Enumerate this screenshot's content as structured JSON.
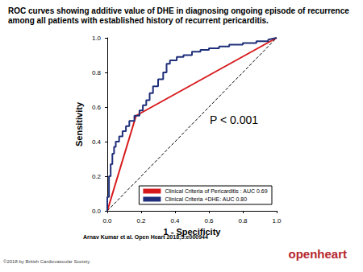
{
  "chart_data": {
    "type": "line",
    "title": "ROC curves showing additive value of DHE in diagnosing ongoing episode of recurrence among all patients with established history of recurrent pericarditis.",
    "x_label": "1 - Specificity",
    "y_label": "Sensitivity",
    "xlim": [
      0,
      1
    ],
    "ylim": [
      0,
      1
    ],
    "xticks": [
      {
        "value": 0,
        "label": "0.0"
      },
      0.2,
      0.4,
      0.6,
      0.8,
      {
        "value": 1,
        "label": "1.0"
      }
    ],
    "yticks": [
      {
        "value": 0,
        "label": "0.0"
      },
      0.2,
      0.4,
      0.6,
      0.8,
      {
        "value": 1,
        "label": "1.0"
      }
    ],
    "grid": false,
    "legend": "lower right",
    "annotations": [
      "P < 0.001"
    ],
    "series": [
      {
        "name": "Clinical Criteria of Pericarditis : AUC 0.69",
        "color": "#d7191c",
        "line_style": "solid",
        "x": [
          0,
          0.17,
          1
        ],
        "values": [
          0,
          0.55,
          1
        ]
      },
      {
        "name": "Clinical Criteria +DHE: AUC 0.80",
        "color": "#1f2f7a",
        "line_style": "solid",
        "x": [
          0,
          0,
          0.01,
          0.01,
          0.02,
          0.02,
          0.03,
          0.03,
          0.04,
          0.04,
          0.05,
          0.05,
          0.07,
          0.07,
          0.09,
          0.09,
          0.11,
          0.11,
          0.13,
          0.13,
          0.16,
          0.16,
          0.19,
          0.19,
          0.21,
          0.21,
          0.23,
          0.23,
          0.25,
          0.25,
          0.27,
          0.27,
          0.3,
          0.3,
          0.33,
          0.33,
          0.35,
          0.35,
          0.37,
          0.37,
          0.41,
          0.41,
          0.45,
          0.45,
          0.5,
          0.5,
          0.55,
          0.55,
          0.6,
          0.6,
          0.66,
          0.66,
          0.72,
          0.72,
          0.8,
          0.8,
          0.88,
          0.88,
          0.95,
          0.95,
          1
        ],
        "values": [
          0,
          0.08,
          0.08,
          0.2,
          0.2,
          0.27,
          0.27,
          0.33,
          0.33,
          0.37,
          0.37,
          0.4,
          0.4,
          0.43,
          0.43,
          0.46,
          0.46,
          0.49,
          0.49,
          0.52,
          0.52,
          0.55,
          0.55,
          0.58,
          0.58,
          0.61,
          0.61,
          0.64,
          0.64,
          0.68,
          0.68,
          0.72,
          0.72,
          0.76,
          0.76,
          0.8,
          0.8,
          0.85,
          0.85,
          0.87,
          0.87,
          0.89,
          0.89,
          0.9,
          0.9,
          0.92,
          0.92,
          0.93,
          0.93,
          0.94,
          0.94,
          0.95,
          0.95,
          0.96,
          0.96,
          0.97,
          0.97,
          0.98,
          0.98,
          0.99,
          1
        ]
      },
      {
        "color": "#000000",
        "line_style": "dashed",
        "x": [
          0,
          1
        ],
        "values": [
          0,
          1
        ]
      }
    ]
  },
  "citation": "Arnav Kumar et al. Open Heart 2018;5:e000944",
  "copyright": "©2018 by British Cardiovascular Society",
  "logo": "openheart"
}
